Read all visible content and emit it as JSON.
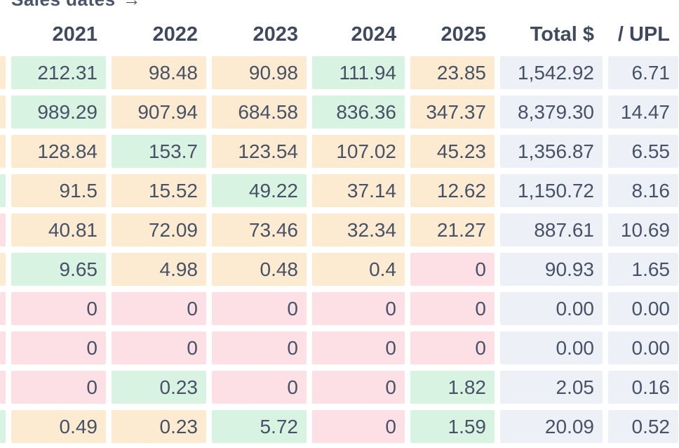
{
  "top_label": {
    "text": "Sales dates",
    "arrow": "→"
  },
  "colors": {
    "green": "#d9f3e3",
    "peach": "#fcead1",
    "pink": "#fde0e5",
    "neutral": "#edf1f7"
  },
  "table": {
    "columns": [
      "2021",
      "2022",
      "2023",
      "2024",
      "2025",
      "Total $",
      "/ UPL"
    ],
    "rows": [
      {
        "edge_color": "peach",
        "cells": [
          {
            "value": "212.31",
            "color": "green"
          },
          {
            "value": "98.48",
            "color": "peach"
          },
          {
            "value": "90.98",
            "color": "peach"
          },
          {
            "value": "111.94",
            "color": "green"
          },
          {
            "value": "23.85",
            "color": "peach"
          },
          {
            "value": "1,542.92",
            "color": "neutral"
          },
          {
            "value": "6.71",
            "color": "neutral"
          }
        ]
      },
      {
        "edge_color": "peach",
        "cells": [
          {
            "value": "989.29",
            "color": "green"
          },
          {
            "value": "907.94",
            "color": "peach"
          },
          {
            "value": "684.58",
            "color": "peach"
          },
          {
            "value": "836.36",
            "color": "green"
          },
          {
            "value": "347.37",
            "color": "peach"
          },
          {
            "value": "8,379.30",
            "color": "neutral"
          },
          {
            "value": "14.47",
            "color": "neutral"
          }
        ]
      },
      {
        "edge_color": "peach",
        "cells": [
          {
            "value": "128.84",
            "color": "peach"
          },
          {
            "value": "153.7",
            "color": "green"
          },
          {
            "value": "123.54",
            "color": "peach"
          },
          {
            "value": "107.02",
            "color": "peach"
          },
          {
            "value": "45.23",
            "color": "peach"
          },
          {
            "value": "1,356.87",
            "color": "neutral"
          },
          {
            "value": "6.55",
            "color": "neutral"
          }
        ]
      },
      {
        "edge_color": "green",
        "cells": [
          {
            "value": "91.5",
            "color": "peach"
          },
          {
            "value": "15.52",
            "color": "peach"
          },
          {
            "value": "49.22",
            "color": "green"
          },
          {
            "value": "37.14",
            "color": "peach"
          },
          {
            "value": "12.62",
            "color": "peach"
          },
          {
            "value": "1,150.72",
            "color": "neutral"
          },
          {
            "value": "8.16",
            "color": "neutral"
          }
        ]
      },
      {
        "edge_color": "pink",
        "cells": [
          {
            "value": "40.81",
            "color": "peach"
          },
          {
            "value": "72.09",
            "color": "peach"
          },
          {
            "value": "73.46",
            "color": "peach"
          },
          {
            "value": "32.34",
            "color": "peach"
          },
          {
            "value": "21.27",
            "color": "peach"
          },
          {
            "value": "887.61",
            "color": "neutral"
          },
          {
            "value": "10.69",
            "color": "neutral"
          }
        ]
      },
      {
        "edge_color": "peach",
        "cells": [
          {
            "value": "9.65",
            "color": "green"
          },
          {
            "value": "4.98",
            "color": "peach"
          },
          {
            "value": "0.48",
            "color": "peach"
          },
          {
            "value": "0.4",
            "color": "peach"
          },
          {
            "value": "0",
            "color": "pink"
          },
          {
            "value": "90.93",
            "color": "neutral"
          },
          {
            "value": "1.65",
            "color": "neutral"
          }
        ]
      },
      {
        "edge_color": "pink",
        "cells": [
          {
            "value": "0",
            "color": "pink"
          },
          {
            "value": "0",
            "color": "pink"
          },
          {
            "value": "0",
            "color": "pink"
          },
          {
            "value": "0",
            "color": "pink"
          },
          {
            "value": "0",
            "color": "pink"
          },
          {
            "value": "0.00",
            "color": "neutral"
          },
          {
            "value": "0.00",
            "color": "neutral"
          }
        ]
      },
      {
        "edge_color": "pink",
        "cells": [
          {
            "value": "0",
            "color": "pink"
          },
          {
            "value": "0",
            "color": "pink"
          },
          {
            "value": "0",
            "color": "pink"
          },
          {
            "value": "0",
            "color": "pink"
          },
          {
            "value": "0",
            "color": "pink"
          },
          {
            "value": "0.00",
            "color": "neutral"
          },
          {
            "value": "0.00",
            "color": "neutral"
          }
        ]
      },
      {
        "edge_color": "pink",
        "cells": [
          {
            "value": "0",
            "color": "pink"
          },
          {
            "value": "0.23",
            "color": "green"
          },
          {
            "value": "0",
            "color": "pink"
          },
          {
            "value": "0",
            "color": "pink"
          },
          {
            "value": "1.82",
            "color": "green"
          },
          {
            "value": "2.05",
            "color": "neutral"
          },
          {
            "value": "0.16",
            "color": "neutral"
          }
        ]
      },
      {
        "edge_color": "green",
        "cells": [
          {
            "value": "0.49",
            "color": "peach"
          },
          {
            "value": "0.23",
            "color": "peach"
          },
          {
            "value": "5.72",
            "color": "green"
          },
          {
            "value": "0",
            "color": "pink"
          },
          {
            "value": "1.59",
            "color": "green"
          },
          {
            "value": "20.09",
            "color": "neutral"
          },
          {
            "value": "0.52",
            "color": "neutral"
          }
        ]
      }
    ]
  }
}
